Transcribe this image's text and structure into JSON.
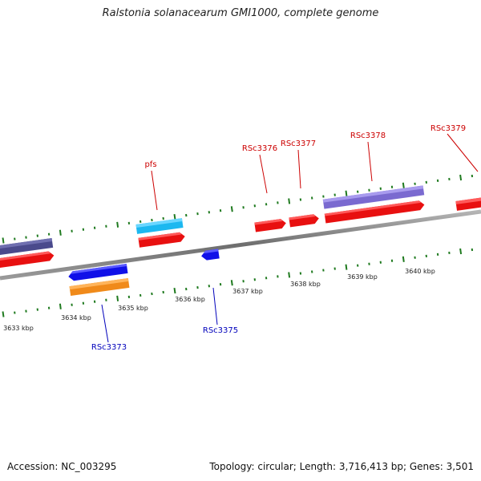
{
  "title": "Ralstonia solanacearum GMI1000, complete genome",
  "footer": {
    "accession": "Accession: NC_003295",
    "summary": "Topology: circular; Length: 3,716,413 bp; Genes: 3,501"
  },
  "colors": {
    "backbone": "#8c8c8c",
    "ticks": "#1f7a1f",
    "forward_label": "#cc0000",
    "reverse_label": "#0000bb"
  },
  "scale_labels": [
    "3633 kbp",
    "3634 kbp",
    "3635 kbp",
    "3636 kbp",
    "3637 kbp",
    "3638 kbp",
    "3639 kbp",
    "3640 kbp"
  ],
  "gene_labels": {
    "forward": [
      "pfs",
      "RSc3376",
      "RSc3377",
      "RSc3378",
      "RSc3379"
    ],
    "reverse": [
      "RSc3373",
      "RSc3375"
    ]
  }
}
